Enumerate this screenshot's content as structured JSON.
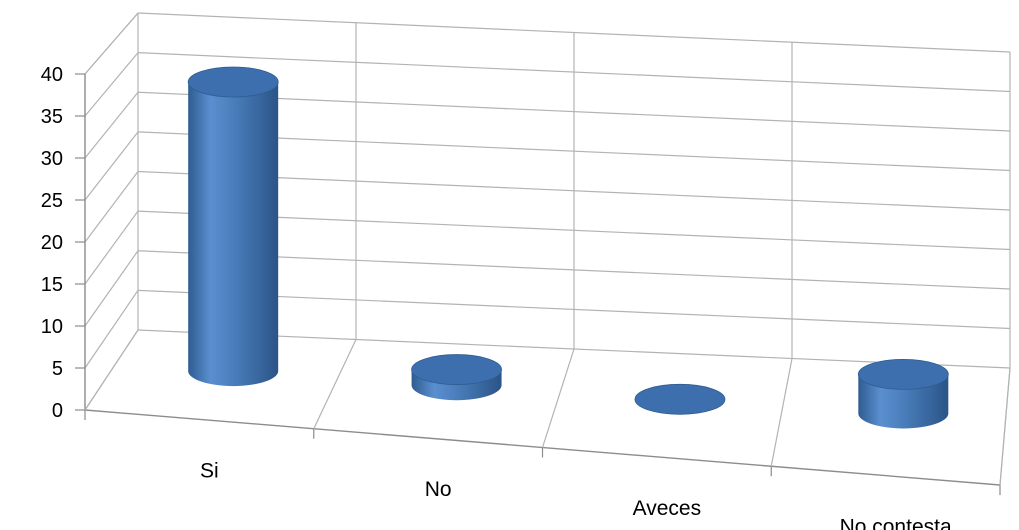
{
  "chart_data": {
    "type": "bar",
    "style": "3d-cylinder",
    "categories": [
      "Si",
      "No",
      "Aveces",
      "No contesta"
    ],
    "values": [
      37,
      2,
      0,
      5
    ],
    "ylim": [
      0,
      40
    ],
    "yticks": [
      "0",
      "5",
      "10",
      "15",
      "20",
      "25",
      "30",
      "35",
      "40"
    ],
    "grid": true,
    "legend": "none",
    "colors": {
      "bar": "#4a7ebb",
      "bar_dark": "#2f5c91",
      "bar_top": "#3d6fae",
      "grid": "#b3b3b3",
      "axis": "#8c8c8c"
    }
  }
}
